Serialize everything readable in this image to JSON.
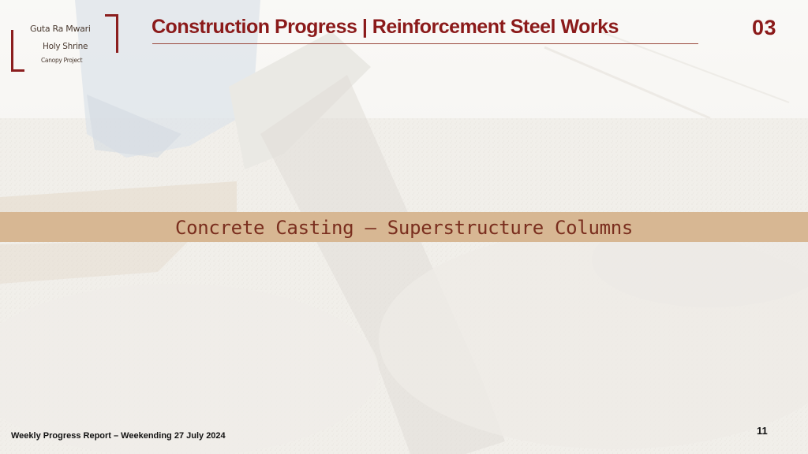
{
  "logo": {
    "line1": "Guta Ra Mwari",
    "line2": "Holy Shrine",
    "line3": "Canopy Project"
  },
  "header": {
    "title": "Construction Progress | Reinforcement Steel Works",
    "section_number": "03"
  },
  "banner": {
    "text": "Concrete Casting – Superstructure Columns"
  },
  "footer": {
    "report_label": "Weekly Progress Report – Weekending  27 July 2024",
    "page_number": "11"
  },
  "colors": {
    "brand_red": "#8b1a1a",
    "band_tan": "#d7b793",
    "band_text": "#7a2e1e"
  }
}
